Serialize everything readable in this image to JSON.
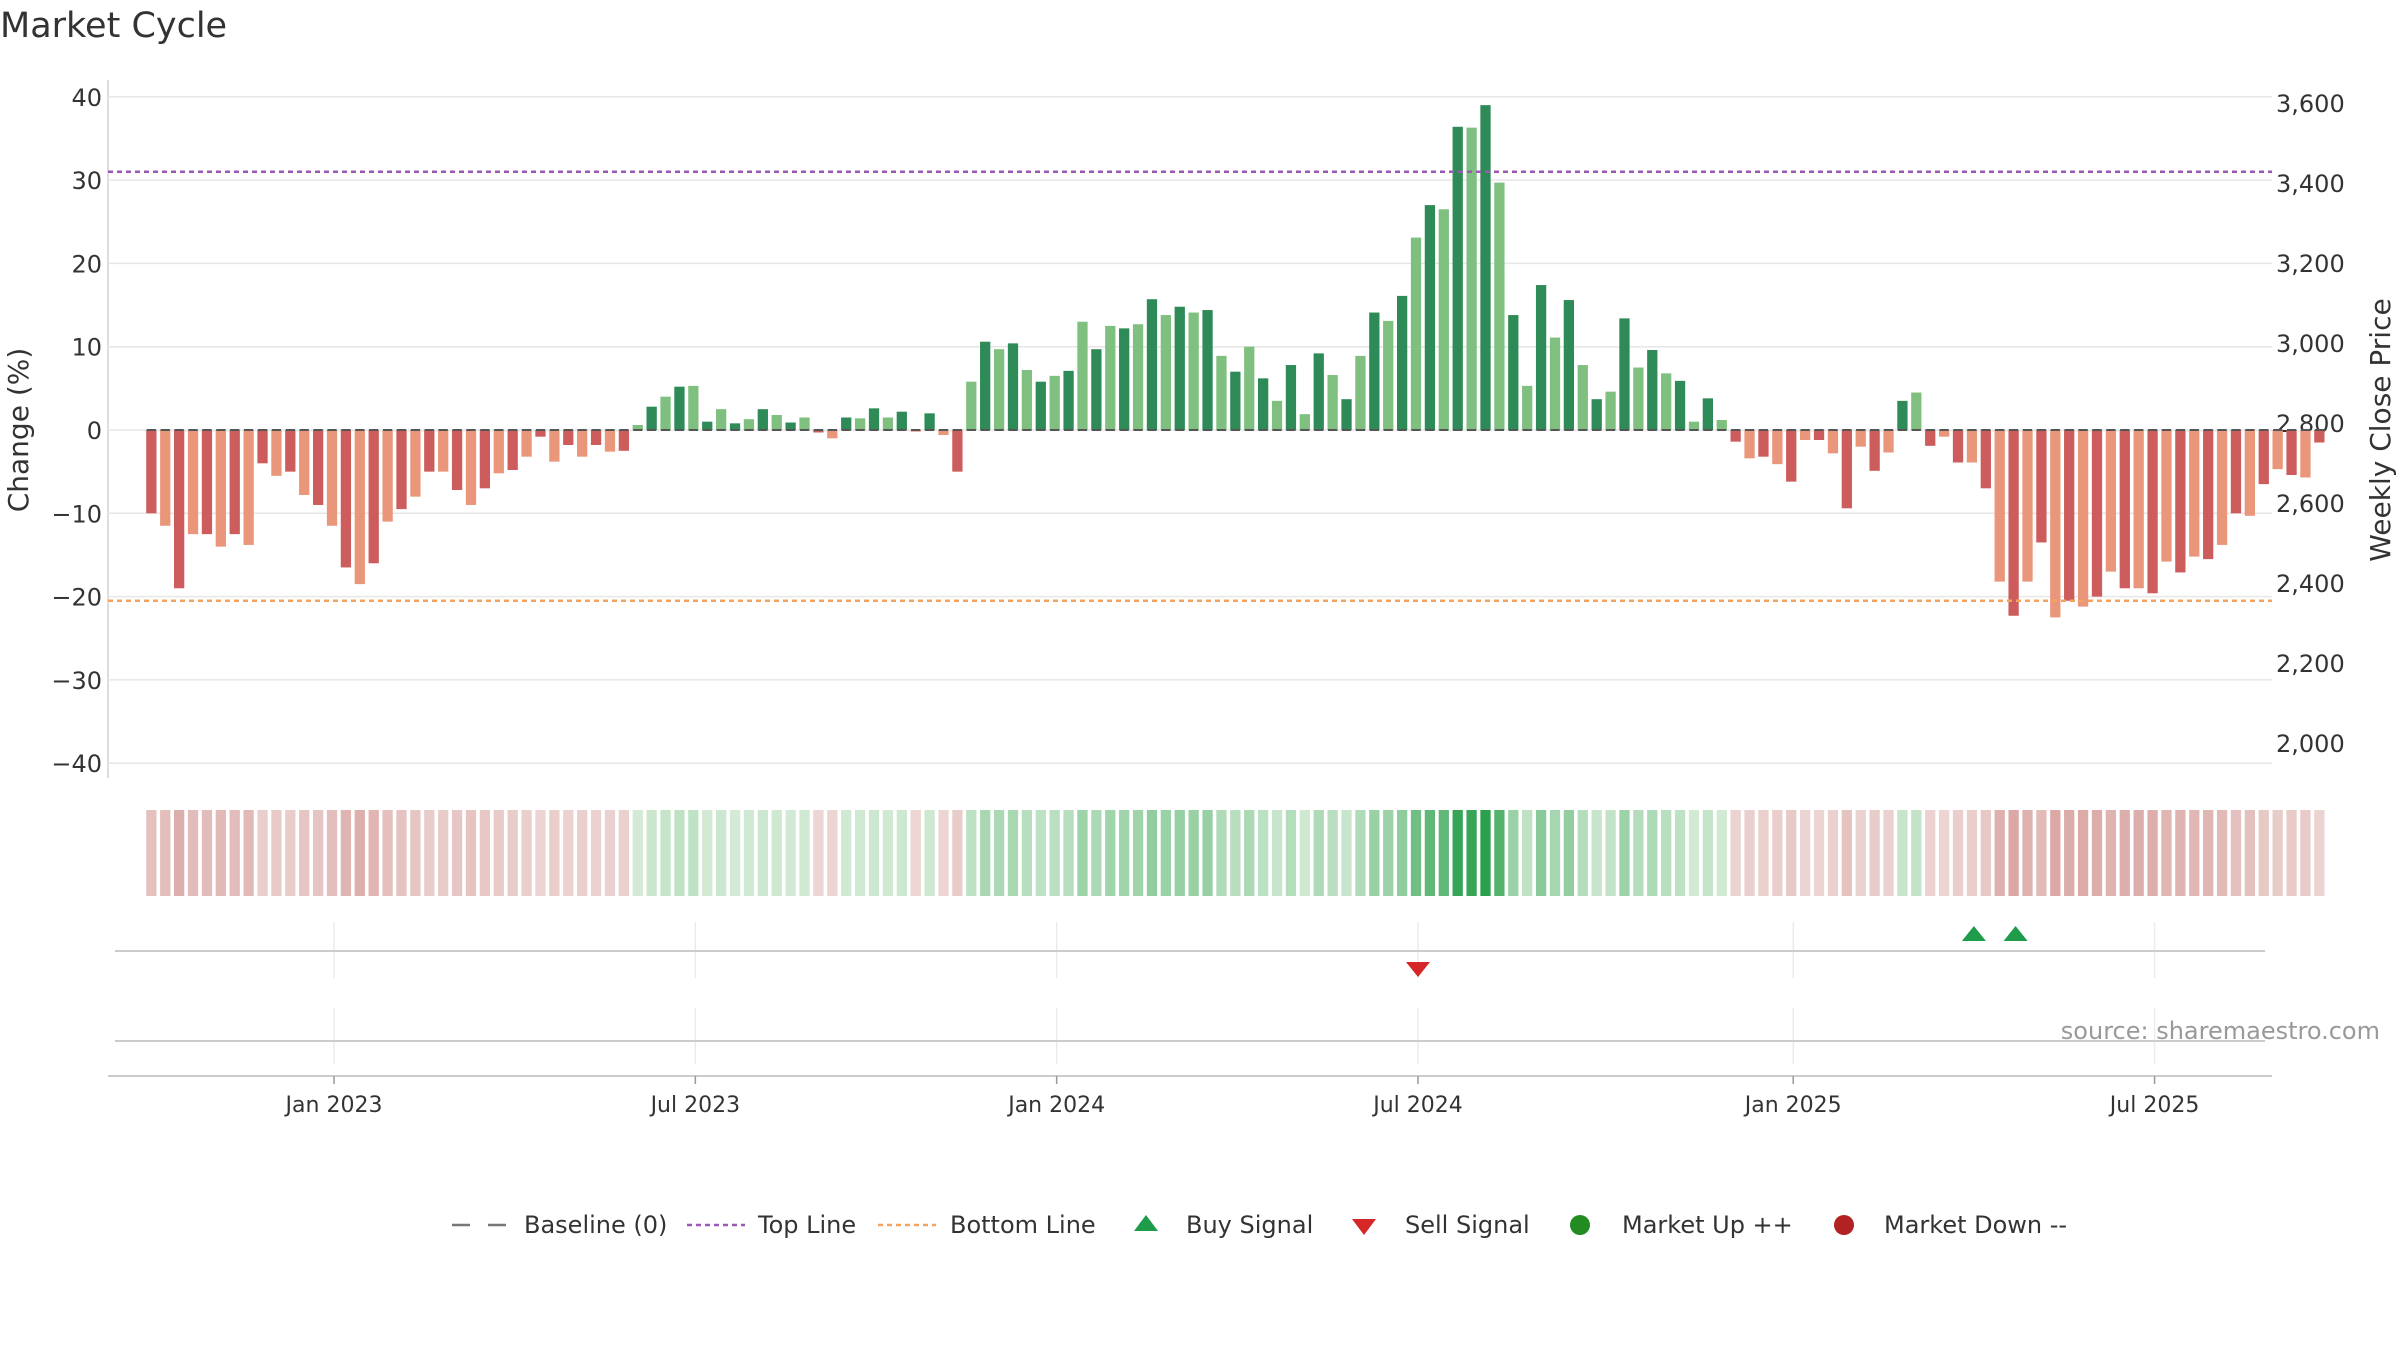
{
  "title": "Market Cycle",
  "source": "source: sharemaestro.com",
  "chart_data": {
    "type": "bar",
    "title": "Market Cycle",
    "ylabel": "Change (%)",
    "y2label": "Weekly Close Price",
    "ylim": [
      -40,
      40
    ],
    "y2lim": [
      2000,
      3600
    ],
    "yticks": [
      "−40",
      "−30",
      "−20",
      "−10",
      "0",
      "10",
      "20",
      "30",
      "40"
    ],
    "y2ticks": [
      "2,000",
      "2,200",
      "2,400",
      "2,600",
      "2,800",
      "3,000",
      "3,200",
      "3,400",
      "3,600"
    ],
    "xticks": [
      "Jan 2023",
      "Jul 2023",
      "Jan 2024",
      "Jul 2024",
      "Jan 2025",
      "Jul 2025"
    ],
    "grid": true,
    "legend_position": "bottom",
    "top_line": 31,
    "bottom_line": -20.5,
    "baseline": 0,
    "start_week": "2022-10-02",
    "weekly_change": [
      -10,
      -11.5,
      -19,
      -12.5,
      -12.5,
      -14,
      -12.5,
      -13.8,
      -4,
      -5.5,
      -5,
      -7.8,
      -9,
      -11.5,
      -16.5,
      -18.5,
      -16,
      -11,
      -9.5,
      -8,
      -5,
      -5,
      -7.2,
      -9,
      -7,
      -5.2,
      -4.8,
      -3.2,
      -0.8,
      -3.8,
      -1.8,
      -3.2,
      -1.8,
      -2.6,
      -2.5,
      0.6,
      2.8,
      4,
      5.2,
      5.3,
      1,
      2.5,
      0.8,
      1.3,
      2.5,
      1.8,
      0.9,
      1.5,
      -0.3,
      -1,
      1.5,
      1.4,
      2.6,
      1.5,
      2.2,
      -0.2,
      2,
      -0.6,
      -5,
      5.8,
      10.6,
      9.7,
      10.4,
      7.2,
      5.8,
      6.5,
      7.1,
      13,
      9.7,
      12.5,
      12.2,
      12.7,
      15.7,
      13.8,
      14.8,
      14.1,
      14.4,
      8.9,
      7,
      10,
      6.2,
      3.5,
      7.8,
      1.9,
      9.2,
      6.6,
      3.7,
      8.9,
      14.1,
      13.1,
      16.1,
      23.1,
      27,
      26.5,
      36.4,
      36.3,
      39,
      29.7,
      13.8,
      5.3,
      17.4,
      11.1,
      15.6,
      7.8,
      3.7,
      4.6,
      13.4,
      7.5,
      9.6,
      6.8,
      5.9,
      1,
      3.8,
      1.2,
      -1.4,
      -3.4,
      -3.2,
      -4.1,
      -6.2,
      -1.2,
      -1.2,
      -2.8,
      -9.4,
      -2,
      -4.9,
      -2.7,
      3.5,
      4.5,
      -1.9,
      -0.8,
      -3.9,
      -3.9,
      -7,
      -18.2,
      -22.3,
      -18.2,
      -13.5,
      -22.5,
      -20.5,
      -21.2,
      -20,
      -17,
      -19,
      -19,
      -19.6,
      -15.8,
      -17.1,
      -15.2,
      -15.5,
      -13.8,
      -10,
      -10.3,
      -6.5,
      -4.7,
      -5.4,
      -5.7,
      -1.5
    ],
    "sell_signals": [
      "2024-07-01"
    ],
    "buy_signals": [
      "2025-04-07",
      "2025-04-28"
    ],
    "market_up_points": [],
    "market_down_points": []
  },
  "colors": {
    "up_strong": "#2e8b57",
    "up_light": "#7fc080",
    "down_strong": "#cd5c5c",
    "down_light": "#e9967a",
    "top_line": "#9b59b6",
    "bottom_line": "#f4a460",
    "baseline": "#555555",
    "buy": "#1e9c4a",
    "sell": "#d62728",
    "market_up": "#228b22",
    "market_down": "#b22222"
  },
  "legend": {
    "baseline": "Baseline (0)",
    "top_line": "Top Line",
    "bottom_line": "Bottom Line",
    "buy": "Buy Signal",
    "sell": "Sell Signal",
    "market_up": "Market Up ++",
    "market_down": "Market Down --"
  }
}
